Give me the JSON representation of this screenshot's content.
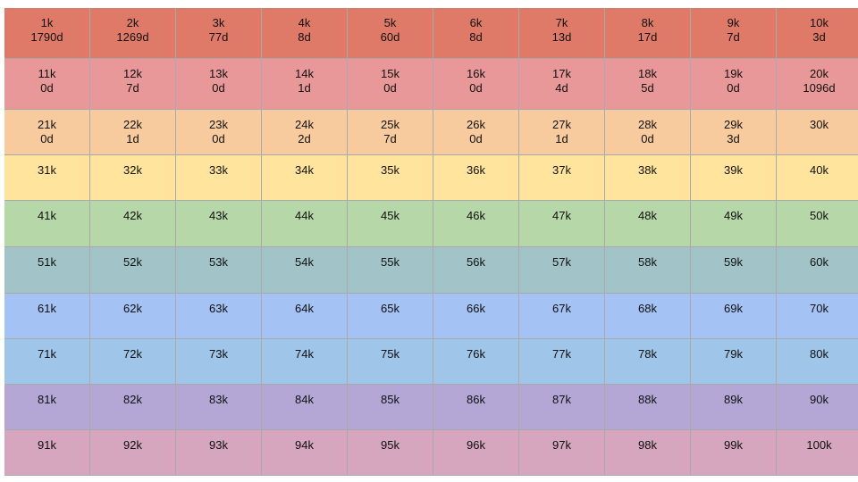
{
  "rows": [
    {
      "color": "#df7a69",
      "height": 57,
      "cells": [
        {
          "k": "1k",
          "d": "1790d"
        },
        {
          "k": "2k",
          "d": "1269d"
        },
        {
          "k": "3k",
          "d": "77d"
        },
        {
          "k": "4k",
          "d": "8d"
        },
        {
          "k": "5k",
          "d": "60d"
        },
        {
          "k": "6k",
          "d": "8d"
        },
        {
          "k": "7k",
          "d": "13d"
        },
        {
          "k": "8k",
          "d": "17d"
        },
        {
          "k": "9k",
          "d": "7d"
        },
        {
          "k": "10k",
          "d": "3d"
        }
      ]
    },
    {
      "color": "#e99899",
      "height": 57,
      "cells": [
        {
          "k": "11k",
          "d": "0d"
        },
        {
          "k": "12k",
          "d": "7d"
        },
        {
          "k": "13k",
          "d": "0d"
        },
        {
          "k": "14k",
          "d": "1d"
        },
        {
          "k": "15k",
          "d": "0d"
        },
        {
          "k": "16k",
          "d": "0d"
        },
        {
          "k": "17k",
          "d": "4d"
        },
        {
          "k": "18k",
          "d": "5d"
        },
        {
          "k": "19k",
          "d": "0d"
        },
        {
          "k": "20k",
          "d": "1096d"
        }
      ]
    },
    {
      "color": "#f8cb9e",
      "height": 51,
      "cells": [
        {
          "k": "21k",
          "d": "0d"
        },
        {
          "k": "22k",
          "d": "1d"
        },
        {
          "k": "23k",
          "d": "0d"
        },
        {
          "k": "24k",
          "d": "2d"
        },
        {
          "k": "25k",
          "d": "7d"
        },
        {
          "k": "26k",
          "d": "0d"
        },
        {
          "k": "27k",
          "d": "1d"
        },
        {
          "k": "28k",
          "d": "0d"
        },
        {
          "k": "29k",
          "d": "3d"
        },
        {
          "k": "30k",
          "d": ""
        }
      ]
    },
    {
      "color": "#fee49c",
      "height": 51,
      "cells": [
        {
          "k": "31k",
          "d": ""
        },
        {
          "k": "32k",
          "d": ""
        },
        {
          "k": "33k",
          "d": ""
        },
        {
          "k": "34k",
          "d": ""
        },
        {
          "k": "35k",
          "d": ""
        },
        {
          "k": "36k",
          "d": ""
        },
        {
          "k": "37k",
          "d": ""
        },
        {
          "k": "38k",
          "d": ""
        },
        {
          "k": "39k",
          "d": ""
        },
        {
          "k": "40k",
          "d": ""
        }
      ]
    },
    {
      "color": "#b6d7a8",
      "height": 52,
      "cells": [
        {
          "k": "41k",
          "d": ""
        },
        {
          "k": "42k",
          "d": ""
        },
        {
          "k": "43k",
          "d": ""
        },
        {
          "k": "44k",
          "d": ""
        },
        {
          "k": "45k",
          "d": ""
        },
        {
          "k": "46k",
          "d": ""
        },
        {
          "k": "47k",
          "d": ""
        },
        {
          "k": "48k",
          "d": ""
        },
        {
          "k": "49k",
          "d": ""
        },
        {
          "k": "50k",
          "d": ""
        }
      ]
    },
    {
      "color": "#a2c4c9",
      "height": 52,
      "cells": [
        {
          "k": "51k",
          "d": ""
        },
        {
          "k": "52k",
          "d": ""
        },
        {
          "k": "53k",
          "d": ""
        },
        {
          "k": "54k",
          "d": ""
        },
        {
          "k": "55k",
          "d": ""
        },
        {
          "k": "56k",
          "d": ""
        },
        {
          "k": "57k",
          "d": ""
        },
        {
          "k": "58k",
          "d": ""
        },
        {
          "k": "59k",
          "d": ""
        },
        {
          "k": "60k",
          "d": ""
        }
      ]
    },
    {
      "color": "#a4c2f4",
      "height": 51,
      "cells": [
        {
          "k": "61k",
          "d": ""
        },
        {
          "k": "62k",
          "d": ""
        },
        {
          "k": "63k",
          "d": ""
        },
        {
          "k": "64k",
          "d": ""
        },
        {
          "k": "65k",
          "d": ""
        },
        {
          "k": "66k",
          "d": ""
        },
        {
          "k": "67k",
          "d": ""
        },
        {
          "k": "68k",
          "d": ""
        },
        {
          "k": "69k",
          "d": ""
        },
        {
          "k": "70k",
          "d": ""
        }
      ]
    },
    {
      "color": "#9fc5e8",
      "height": 51,
      "cells": [
        {
          "k": "71k",
          "d": ""
        },
        {
          "k": "72k",
          "d": ""
        },
        {
          "k": "73k",
          "d": ""
        },
        {
          "k": "74k",
          "d": ""
        },
        {
          "k": "75k",
          "d": ""
        },
        {
          "k": "76k",
          "d": ""
        },
        {
          "k": "77k",
          "d": ""
        },
        {
          "k": "78k",
          "d": ""
        },
        {
          "k": "79k",
          "d": ""
        },
        {
          "k": "80k",
          "d": ""
        }
      ]
    },
    {
      "color": "#b4a7d6",
      "height": 51,
      "cells": [
        {
          "k": "81k",
          "d": ""
        },
        {
          "k": "82k",
          "d": ""
        },
        {
          "k": "83k",
          "d": ""
        },
        {
          "k": "84k",
          "d": ""
        },
        {
          "k": "85k",
          "d": ""
        },
        {
          "k": "86k",
          "d": ""
        },
        {
          "k": "87k",
          "d": ""
        },
        {
          "k": "88k",
          "d": ""
        },
        {
          "k": "89k",
          "d": ""
        },
        {
          "k": "90k",
          "d": ""
        }
      ]
    },
    {
      "color": "#d5a6bd",
      "height": 51,
      "cells": [
        {
          "k": "91k",
          "d": ""
        },
        {
          "k": "92k",
          "d": ""
        },
        {
          "k": "93k",
          "d": ""
        },
        {
          "k": "94k",
          "d": ""
        },
        {
          "k": "95k",
          "d": ""
        },
        {
          "k": "96k",
          "d": ""
        },
        {
          "k": "97k",
          "d": ""
        },
        {
          "k": "98k",
          "d": ""
        },
        {
          "k": "99k",
          "d": ""
        },
        {
          "k": "100k",
          "d": ""
        }
      ]
    }
  ]
}
